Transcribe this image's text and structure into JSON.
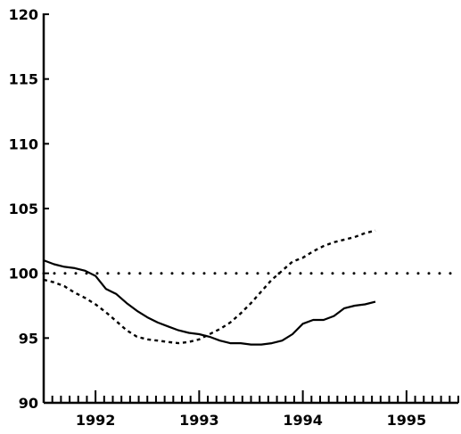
{
  "chart_data": {
    "type": "line",
    "title": "",
    "xlabel": "",
    "ylabel": "",
    "xlim": [
      1991.5,
      1995.5
    ],
    "ylim": [
      90,
      120
    ],
    "yticks": [
      {
        "value": 90,
        "label": "90"
      },
      {
        "value": 95,
        "label": "95"
      },
      {
        "value": 100,
        "label": "100"
      },
      {
        "value": 105,
        "label": "105"
      },
      {
        "value": 110,
        "label": "110"
      },
      {
        "value": 115,
        "label": "115"
      },
      {
        "value": 120,
        "label": "120"
      }
    ],
    "xticks": [
      {
        "value": 1992,
        "label": "1992"
      },
      {
        "value": 1993,
        "label": "1993"
      },
      {
        "value": 1994,
        "label": "1994"
      },
      {
        "value": 1995,
        "label": "1995"
      }
    ],
    "minor_ticks_per_year": 12,
    "grid": false,
    "series": [
      {
        "style": "solid",
        "color": "#000000",
        "points": [
          [
            1991.5,
            101.0
          ],
          [
            1991.6,
            100.7
          ],
          [
            1991.7,
            100.5
          ],
          [
            1991.8,
            100.4
          ],
          [
            1991.9,
            100.2
          ],
          [
            1992.0,
            99.8
          ],
          [
            1992.1,
            98.8
          ],
          [
            1992.2,
            98.4
          ],
          [
            1992.3,
            97.7
          ],
          [
            1992.4,
            97.1
          ],
          [
            1992.5,
            96.6
          ],
          [
            1992.6,
            96.2
          ],
          [
            1992.7,
            95.9
          ],
          [
            1992.8,
            95.6
          ],
          [
            1992.9,
            95.4
          ],
          [
            1993.0,
            95.3
          ],
          [
            1993.1,
            95.1
          ],
          [
            1993.2,
            94.8
          ],
          [
            1993.3,
            94.6
          ],
          [
            1993.4,
            94.6
          ],
          [
            1993.5,
            94.5
          ],
          [
            1993.6,
            94.5
          ],
          [
            1993.7,
            94.6
          ],
          [
            1993.8,
            94.8
          ],
          [
            1993.9,
            95.3
          ],
          [
            1994.0,
            96.1
          ],
          [
            1994.1,
            96.4
          ],
          [
            1994.2,
            96.4
          ],
          [
            1994.3,
            96.7
          ],
          [
            1994.4,
            97.3
          ],
          [
            1994.5,
            97.5
          ],
          [
            1994.6,
            97.6
          ],
          [
            1994.7,
            97.8
          ]
        ]
      },
      {
        "style": "dashed",
        "color": "#000000",
        "points": [
          [
            1991.5,
            99.5
          ],
          [
            1991.6,
            99.3
          ],
          [
            1991.7,
            99.0
          ],
          [
            1991.8,
            98.5
          ],
          [
            1991.9,
            98.1
          ],
          [
            1992.0,
            97.6
          ],
          [
            1992.1,
            97.0
          ],
          [
            1992.2,
            96.3
          ],
          [
            1992.3,
            95.6
          ],
          [
            1992.4,
            95.1
          ],
          [
            1992.5,
            94.9
          ],
          [
            1992.6,
            94.8
          ],
          [
            1992.7,
            94.7
          ],
          [
            1992.8,
            94.6
          ],
          [
            1992.9,
            94.7
          ],
          [
            1993.0,
            94.9
          ],
          [
            1993.1,
            95.3
          ],
          [
            1993.2,
            95.7
          ],
          [
            1993.3,
            96.2
          ],
          [
            1993.4,
            96.9
          ],
          [
            1993.5,
            97.7
          ],
          [
            1993.6,
            98.6
          ],
          [
            1993.7,
            99.5
          ],
          [
            1993.8,
            100.2
          ],
          [
            1993.9,
            100.9
          ],
          [
            1994.0,
            101.2
          ],
          [
            1994.1,
            101.7
          ],
          [
            1994.2,
            102.1
          ],
          [
            1994.3,
            102.4
          ],
          [
            1994.4,
            102.6
          ],
          [
            1994.5,
            102.8
          ],
          [
            1994.6,
            103.1
          ],
          [
            1994.7,
            103.3
          ]
        ]
      },
      {
        "style": "dotted",
        "color": "#000000",
        "points": [
          [
            1991.5,
            100.0
          ],
          [
            1995.5,
            100.0
          ]
        ]
      }
    ]
  }
}
